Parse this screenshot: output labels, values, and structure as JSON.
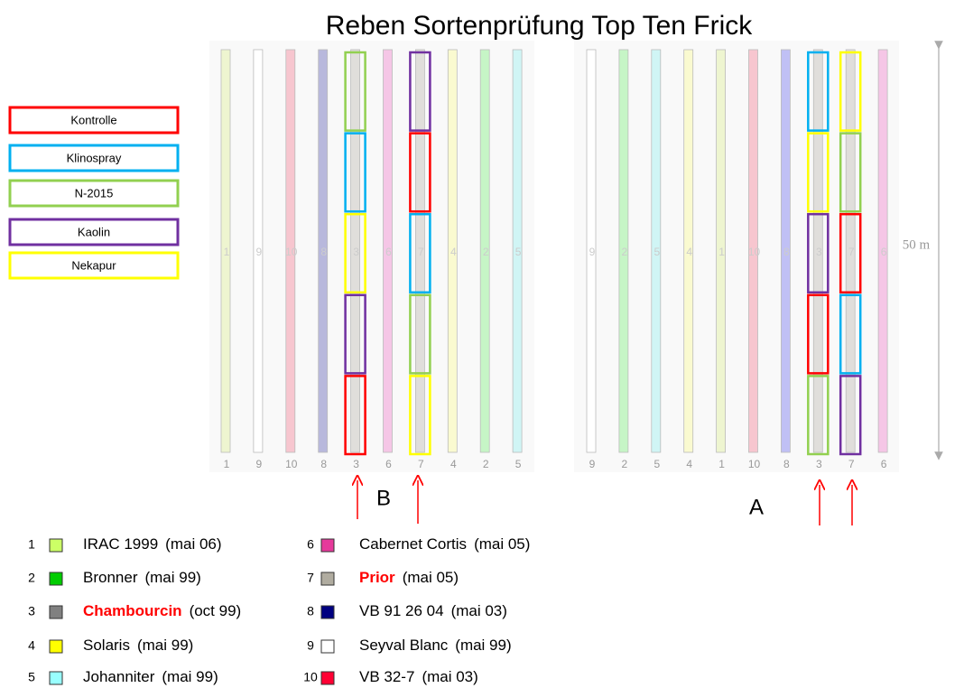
{
  "title": "Reben Sortenprüfung Top Ten Frick",
  "treatments": [
    {
      "label": "Kontrolle",
      "color": "#ff0000"
    },
    {
      "label": "Klinospray",
      "color": "#00b0f0"
    },
    {
      "label": "N-2015",
      "color": "#92d050"
    },
    {
      "label": "Kaolin",
      "color": "#7030a0"
    },
    {
      "label": "Nekapur",
      "color": "#ffff00"
    }
  ],
  "fields": [
    {
      "label": "B",
      "rows": [
        {
          "number": "1",
          "color": "#eef5d0"
        },
        {
          "number": "9",
          "color": "#ffffff"
        },
        {
          "number": "10",
          "color": "#f7c6cf"
        },
        {
          "number": "8",
          "color": "#b8b8dc"
        },
        {
          "number": "3",
          "color": "#e0dedb",
          "plots": [
            "#92d050",
            "#00b0f0",
            "#ffff00",
            "#7030a0",
            "#ff0000"
          ]
        },
        {
          "number": "6",
          "color": "#f5c6e6"
        },
        {
          "number": "7",
          "color": "#e0dedb",
          "plots": [
            "#7030a0",
            "#ff0000",
            "#00b0f0",
            "#92d050",
            "#ffff00"
          ]
        },
        {
          "number": "4",
          "color": "#fafad0"
        },
        {
          "number": "2",
          "color": "#c6f5c6"
        },
        {
          "number": "5",
          "color": "#d0f5f5"
        }
      ]
    },
    {
      "label": "A",
      "rows": [
        {
          "number": "9",
          "color": "#ffffff"
        },
        {
          "number": "2",
          "color": "#c6f5c6"
        },
        {
          "number": "5",
          "color": "#d0f5f5"
        },
        {
          "number": "4",
          "color": "#fafad0"
        },
        {
          "number": "1",
          "color": "#eef5d0"
        },
        {
          "number": "10",
          "color": "#f7c6cf"
        },
        {
          "number": "8",
          "color": "#c0c0f5"
        },
        {
          "number": "3",
          "color": "#e0dedb",
          "plots": [
            "#00b0f0",
            "#ffff00",
            "#7030a0",
            "#ff0000",
            "#92d050"
          ]
        },
        {
          "number": "7",
          "color": "#e0dedb",
          "plots": [
            "#ffff00",
            "#92d050",
            "#ff0000",
            "#00b0f0",
            "#7030a0"
          ]
        },
        {
          "number": "6",
          "color": "#f5c6e6"
        }
      ]
    }
  ],
  "length_label": "50 m",
  "varieties": [
    {
      "number": "1",
      "name": "IRAC 1999",
      "date": "(mai 06)",
      "color": "#ccff66"
    },
    {
      "number": "2",
      "name": "Bronner",
      "date": "(mai 99)",
      "color": "#00cc00"
    },
    {
      "number": "3",
      "name": "Chambourcin",
      "date": "(oct 99)",
      "color": "#808080",
      "name_color": "#ff0000"
    },
    {
      "number": "4",
      "name": "Solaris",
      "date": "(mai 99)",
      "color": "#ffff00"
    },
    {
      "number": "5",
      "name": "Johanniter",
      "date": "(mai 99)",
      "color": "#99ffff"
    },
    {
      "number": "6",
      "name": "Cabernet Cortis",
      "date": "(mai 05)",
      "color": "#e6399b"
    },
    {
      "number": "7",
      "name": "Prior",
      "date": "(mai 05)",
      "color": "#b0aca0",
      "name_color": "#ff0000"
    },
    {
      "number": "8",
      "name": "VB 91 26 04",
      "date": "(mai 03)",
      "color": "#000080"
    },
    {
      "number": "9",
      "name": "Seyval Blanc",
      "date": "(mai 99)",
      "color": "#ffffff"
    },
    {
      "number": "10",
      "name": "VB 32-7",
      "date": "(mai 03)",
      "color": "#ff0033"
    }
  ]
}
